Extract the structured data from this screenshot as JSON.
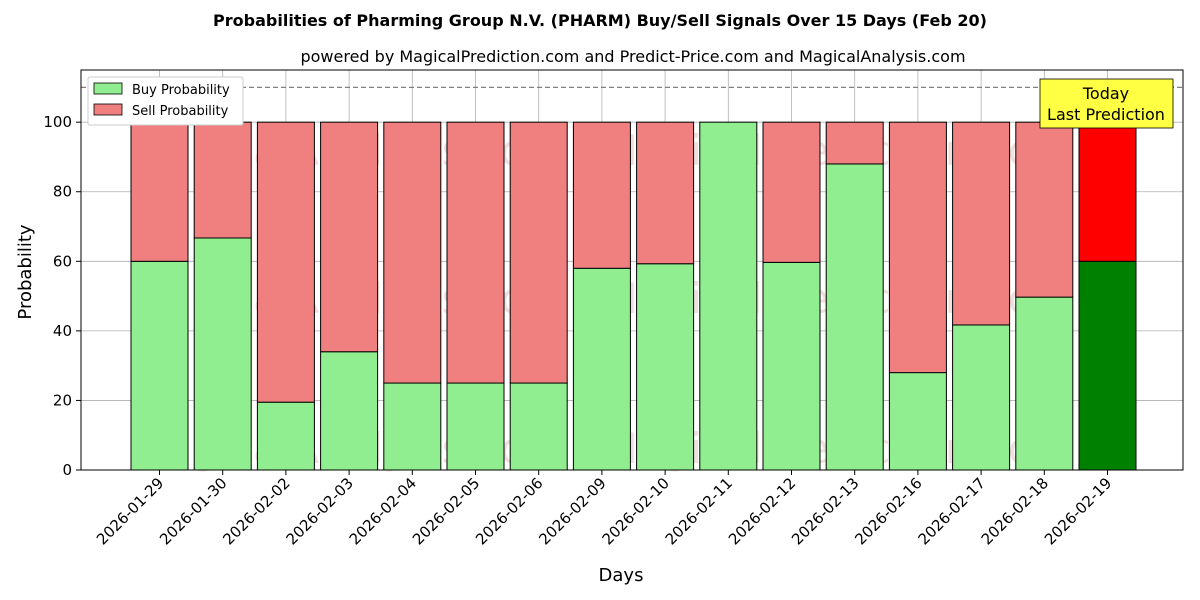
{
  "chart_data": {
    "type": "bar",
    "stacked": true,
    "title": "Probabilities of Pharming Group N.V. (PHARM) Buy/Sell Signals Over 15 Days (Feb 20)",
    "subtitle": "powered by MagicalPrediction.com and Predict-Price.com and MagicalAnalysis.com",
    "xlabel": "Days",
    "ylabel": "Probability",
    "ylim": [
      0,
      115
    ],
    "yticks": [
      0,
      20,
      40,
      60,
      80,
      100
    ],
    "reference_line": 110,
    "grid": true,
    "legend_position": "top-left",
    "categories": [
      "2026-01-29",
      "2026-01-30",
      "2026-02-02",
      "2026-02-03",
      "2026-02-04",
      "2026-02-05",
      "2026-02-06",
      "2026-02-09",
      "2026-02-10",
      "2026-02-11",
      "2026-02-12",
      "2026-02-13",
      "2026-02-16",
      "2026-02-17",
      "2026-02-18",
      "2026-02-19"
    ],
    "series": [
      {
        "name": "Buy Probability",
        "color": "#90ee90",
        "highlight_color": "#008000",
        "values": [
          60,
          66.7,
          19.5,
          34,
          25,
          25,
          25,
          58,
          59.3,
          100,
          59.7,
          88,
          28,
          41.7,
          49.7,
          60
        ]
      },
      {
        "name": "Sell Probability",
        "color": "#f08080",
        "highlight_color": "#ff0000",
        "values": [
          40,
          33.3,
          80.5,
          66,
          75,
          75,
          75,
          42,
          40.7,
          0,
          40.3,
          12,
          72,
          58.3,
          50.3,
          40
        ]
      }
    ],
    "highlight_index": 15,
    "annotation": {
      "line1": "Today",
      "line2": "Last Prediction",
      "color": "#ffff44"
    },
    "watermarks": [
      "MagicalAnalysis.com",
      "MagicalPrediction.com"
    ]
  }
}
